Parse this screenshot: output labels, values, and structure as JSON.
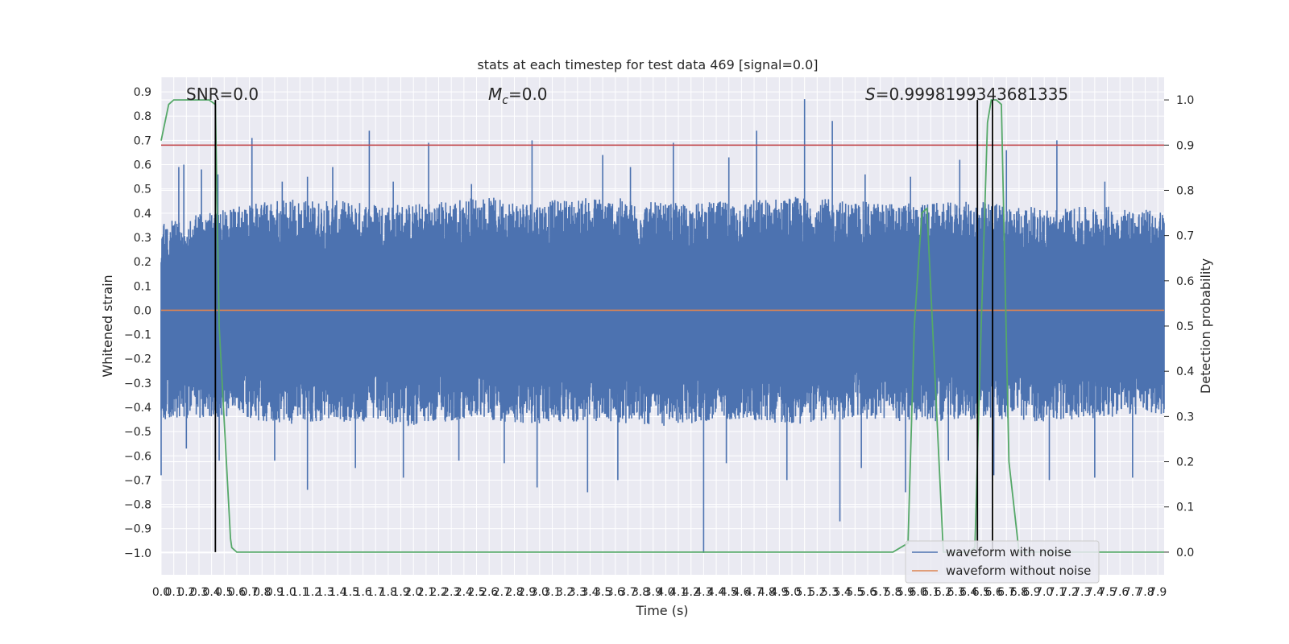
{
  "chart_data": {
    "type": "line",
    "title": "stats at each timestep for test data 469 [signal=0.0]",
    "xlabel": "Time (s)",
    "ylabel": "Whitened strain",
    "y2label": "Detection probability",
    "xlim": [
      0.0,
      7.95
    ],
    "ylim": [
      -1.09,
      0.96
    ],
    "y2lim": [
      -0.05,
      1.05
    ],
    "grid": true,
    "legend_position": "lower right",
    "x_ticks": [
      "0.0",
      "0.1",
      "0.2",
      "0.3",
      "0.4",
      "0.5",
      "0.6",
      "0.7",
      "0.8",
      "0.9",
      "1.0",
      "1.1",
      "1.2",
      "1.3",
      "1.4",
      "1.5",
      "1.6",
      "1.7",
      "1.8",
      "1.9",
      "2.0",
      "2.1",
      "2.2",
      "2.3",
      "2.4",
      "2.5",
      "2.6",
      "2.7",
      "2.8",
      "2.9",
      "3.0",
      "3.1",
      "3.2",
      "3.3",
      "3.4",
      "3.5",
      "3.6",
      "3.7",
      "3.8",
      "3.9",
      "4.0",
      "4.1",
      "4.2",
      "4.3",
      "4.4",
      "4.5",
      "4.6",
      "4.7",
      "4.8",
      "4.9",
      "5.0",
      "5.1",
      "5.2",
      "5.3",
      "5.4",
      "5.5",
      "5.6",
      "5.7",
      "5.8",
      "5.9",
      "6.0",
      "6.1",
      "6.2",
      "6.3",
      "6.4",
      "6.5",
      "6.6",
      "6.7",
      "6.8",
      "6.9",
      "7.0",
      "7.1",
      "7.2",
      "7.3",
      "7.4",
      "7.5",
      "7.6",
      "7.7",
      "7.8",
      "7.9"
    ],
    "y_ticks": [
      "0.9",
      "0.8",
      "0.7",
      "0.6",
      "0.5",
      "0.4",
      "0.3",
      "0.2",
      "0.1",
      "0.0",
      "−0.1",
      "−0.2",
      "−0.3",
      "−0.4",
      "−0.5",
      "−0.6",
      "−0.7",
      "−0.8",
      "−0.9",
      "−1.0"
    ],
    "y2_ticks": [
      "1.0",
      "0.9",
      "0.8",
      "0.7",
      "0.6",
      "0.5",
      "0.4",
      "0.3",
      "0.2",
      "0.1",
      "0.0"
    ],
    "annotations": {
      "snr": "SNR=0.0",
      "mc_symbol": "M",
      "mc_sub": "c",
      "mc_value": "=0.0",
      "s_symbol": "S",
      "s_value": "=0.9998199343681335"
    },
    "series": [
      {
        "name": "waveform with noise",
        "color": "#4c72b0",
        "noise_envelope_upper": [
          [
            0.0,
            0.36
          ],
          [
            0.5,
            0.42
          ],
          [
            1.0,
            0.46
          ],
          [
            1.5,
            0.45
          ],
          [
            2.0,
            0.44
          ],
          [
            2.5,
            0.47
          ],
          [
            3.0,
            0.45
          ],
          [
            3.5,
            0.47
          ],
          [
            4.0,
            0.44
          ],
          [
            4.5,
            0.45
          ],
          [
            5.0,
            0.47
          ],
          [
            5.5,
            0.45
          ],
          [
            6.0,
            0.44
          ],
          [
            6.5,
            0.45
          ],
          [
            7.0,
            0.42
          ],
          [
            7.5,
            0.43
          ],
          [
            7.95,
            0.41
          ]
        ],
        "noise_envelope_lower": [
          [
            0.0,
            -0.45
          ],
          [
            0.5,
            -0.44
          ],
          [
            1.0,
            -0.47
          ],
          [
            1.5,
            -0.46
          ],
          [
            2.0,
            -0.48
          ],
          [
            2.5,
            -0.45
          ],
          [
            3.0,
            -0.47
          ],
          [
            3.5,
            -0.46
          ],
          [
            4.0,
            -0.48
          ],
          [
            4.5,
            -0.45
          ],
          [
            5.0,
            -0.47
          ],
          [
            5.5,
            -0.45
          ],
          [
            6.0,
            -0.46
          ],
          [
            6.5,
            -0.45
          ],
          [
            7.0,
            -0.46
          ],
          [
            7.5,
            -0.44
          ],
          [
            7.95,
            -0.43
          ]
        ],
        "spikes": [
          [
            0.0,
            -0.68
          ],
          [
            0.14,
            0.59
          ],
          [
            0.18,
            0.6
          ],
          [
            0.32,
            0.58
          ],
          [
            0.45,
            0.56
          ],
          [
            0.72,
            0.71
          ],
          [
            0.96,
            0.53
          ],
          [
            1.16,
            0.55
          ],
          [
            1.36,
            0.59
          ],
          [
            1.65,
            0.74
          ],
          [
            1.84,
            0.53
          ],
          [
            2.12,
            0.69
          ],
          [
            2.46,
            0.52
          ],
          [
            2.94,
            0.7
          ],
          [
            3.5,
            0.64
          ],
          [
            3.72,
            0.59
          ],
          [
            4.06,
            0.69
          ],
          [
            4.5,
            0.63
          ],
          [
            4.72,
            0.74
          ],
          [
            5.1,
            0.87
          ],
          [
            5.32,
            0.78
          ],
          [
            5.58,
            0.56
          ],
          [
            5.94,
            0.55
          ],
          [
            6.33,
            0.62
          ],
          [
            6.7,
            0.66
          ],
          [
            7.1,
            0.7
          ],
          [
            7.48,
            0.53
          ],
          [
            0.2,
            -0.57
          ],
          [
            0.46,
            -0.62
          ],
          [
            0.9,
            -0.62
          ],
          [
            1.16,
            -0.74
          ],
          [
            1.54,
            -0.65
          ],
          [
            1.92,
            -0.69
          ],
          [
            2.36,
            -0.62
          ],
          [
            2.72,
            -0.63
          ],
          [
            2.98,
            -0.73
          ],
          [
            3.38,
            -0.75
          ],
          [
            3.62,
            -0.7
          ],
          [
            4.3,
            -1.0
          ],
          [
            4.48,
            -0.63
          ],
          [
            4.96,
            -0.7
          ],
          [
            5.38,
            -0.87
          ],
          [
            5.55,
            -0.65
          ],
          [
            5.9,
            -0.75
          ],
          [
            6.24,
            -0.62
          ],
          [
            6.6,
            -0.68
          ],
          [
            7.04,
            -0.7
          ],
          [
            7.4,
            -0.69
          ],
          [
            7.7,
            -0.69
          ]
        ]
      },
      {
        "name": "waveform without noise",
        "color": "#dd8452",
        "x": [
          0.0,
          7.95
        ],
        "y": [
          0.0,
          0.0
        ]
      },
      {
        "color": "#55a868",
        "axis": "right",
        "x": [
          0.0,
          0.06,
          0.1,
          0.2,
          0.3,
          0.38,
          0.43,
          0.46,
          0.5,
          0.55,
          0.56,
          0.6,
          5.8,
          5.92,
          5.97,
          6.03,
          6.07,
          6.2,
          6.4,
          6.45,
          6.5,
          6.55,
          6.58,
          6.62,
          6.66,
          6.72,
          6.8,
          7.95
        ],
        "y": [
          0.91,
          0.99,
          1.0,
          1.0,
          1.0,
          1.0,
          0.99,
          0.5,
          0.29,
          0.03,
          0.01,
          0.0,
          0.0,
          0.02,
          0.5,
          0.75,
          0.76,
          0.0,
          0.0,
          0.01,
          0.5,
          0.95,
          1.0,
          1.0,
          0.99,
          0.2,
          0.0,
          0.0
        ]
      }
    ],
    "threshold": {
      "axis": "right",
      "y": 0.9,
      "color": "#c44e52"
    },
    "vlines": [
      0.43,
      6.47,
      6.59
    ],
    "vline_color": "#000000"
  }
}
